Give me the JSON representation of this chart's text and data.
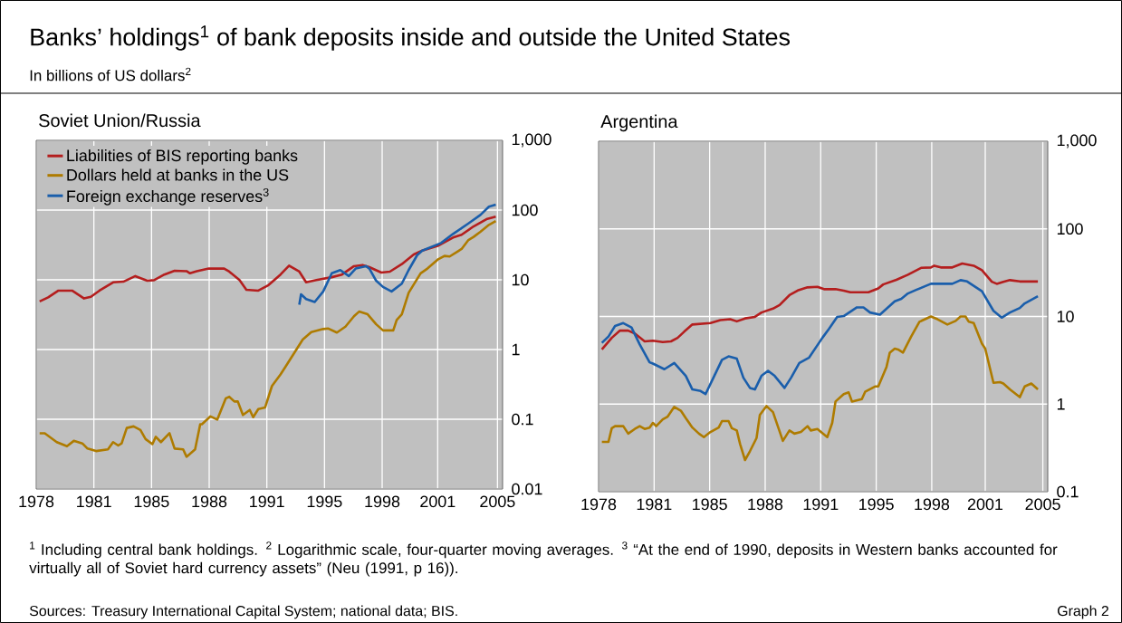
{
  "chart_data": [
    {
      "type": "line",
      "title": "Soviet Union/Russia",
      "annotations": [
        "Banks’ holdings$^{1}$ of bank deposits inside and outside the United States",
        "In billions of US dollars$^{2}$",
        "$^{1}$ Including central bank holdings.  $^{2}$ Logarithmic scale, four-quarter moving averages.  $^{3}$ “At the end of 1990, deposits in Western banks accounted for virtually all of Soviet hard currency assets” (Neu (1991, p 16)).",
        "Sources: Treasury International Capital System; national data; BIS.",
        "Graph 2"
      ],
      "log": "y",
      "grid": true,
      "legend": "top left",
      "xlim": [
        1978,
        2005.3
      ],
      "ylim": [
        0.01,
        1000
      ],
      "xticks": [
        1978,
        {
          "value": 1981.375,
          "label": "1981"
        },
        {
          "value": 1984.75,
          "label": "1985"
        },
        {
          "value": 1988.125,
          "label": "1988"
        },
        {
          "value": 1991.5,
          "label": "1991"
        },
        {
          "value": 1994.875,
          "label": "1995"
        },
        {
          "value": 1998.25,
          "label": "1998"
        },
        {
          "value": 2001.5,
          "label": "2001"
        },
        2005
      ],
      "yticks": [
        0.01,
        0.1,
        1,
        10,
        100,
        {
          "value": 1000,
          "label": "1,000"
        }
      ],
      "series": [
        {
          "name": "Liabilities of BIS reporting banks",
          "color": "#b41e1e",
          "x": [
            1978.2,
            1978.7,
            1979.3,
            1980.1,
            1980.8,
            1981.2,
            1981.7,
            1982.5,
            1983.1,
            1983.8,
            1984.5,
            1984.9,
            1985.5,
            1986.1,
            1986.8,
            1987.0,
            1987.4,
            1988.1,
            1989.0,
            1989.3,
            1989.9,
            1990.3,
            1991.0,
            1991.6,
            1992.3,
            1992.8,
            1993.4,
            1993.8,
            1994.4,
            1995.3,
            1995.9,
            1996.6,
            1997.1,
            1997.5,
            1998.2,
            1998.7,
            1999.4,
            2000.1,
            2000.6,
            2001.5,
            2002.4,
            2002.9,
            2003.6,
            2004.4,
            2004.9
          ],
          "values": [
            4.9,
            5.6,
            7.0,
            7.0,
            5.4,
            5.7,
            7.0,
            9.2,
            9.4,
            11.3,
            9.7,
            9.9,
            11.9,
            13.5,
            13.3,
            12.4,
            13.3,
            14.5,
            14.5,
            13.1,
            9.9,
            7.2,
            7.0,
            8.4,
            11.9,
            16.0,
            13.1,
            9.2,
            9.9,
            10.9,
            11.9,
            15.7,
            16.3,
            15.2,
            12.7,
            13.1,
            16.8,
            23.1,
            26.3,
            30.6,
            40.4,
            44.2,
            58.3,
            74.8,
            80.4
          ]
        },
        {
          "name": "Dollars held at banks in the US",
          "color": "#ae7b00",
          "x": [
            1978.2,
            1978.5,
            1979.2,
            1979.8,
            1980.2,
            1980.7,
            1981.0,
            1981.5,
            1982.2,
            1982.5,
            1982.8,
            1983.0,
            1983.3,
            1983.7,
            1984.1,
            1984.4,
            1984.8,
            1985.0,
            1985.3,
            1985.8,
            1986.1,
            1986.6,
            1986.8,
            1987.3,
            1987.6,
            1987.7,
            1988.2,
            1988.6,
            1989.1,
            1989.3,
            1989.6,
            1989.8,
            1990.1,
            1990.5,
            1990.7,
            1991.0,
            1991.4,
            1991.8,
            1992.3,
            1992.6,
            1993.6,
            1994.1,
            1994.8,
            1995.1,
            1995.6,
            1996.1,
            1996.6,
            1996.9,
            1997.4,
            1997.9,
            1998.3,
            1998.9,
            1999.1,
            1999.4,
            1999.8,
            2000.5,
            2000.9,
            2001.5,
            2001.9,
            2002.2,
            2002.7,
            2002.9,
            2003.3,
            2003.6,
            2004.0,
            2004.5,
            2004.9
          ],
          "values": [
            0.063,
            0.063,
            0.047,
            0.041,
            0.049,
            0.045,
            0.038,
            0.035,
            0.037,
            0.047,
            0.042,
            0.045,
            0.075,
            0.079,
            0.07,
            0.052,
            0.044,
            0.056,
            0.047,
            0.063,
            0.038,
            0.037,
            0.029,
            0.037,
            0.085,
            0.085,
            0.11,
            0.099,
            0.2,
            0.21,
            0.18,
            0.18,
            0.115,
            0.136,
            0.107,
            0.14,
            0.148,
            0.3,
            0.44,
            0.57,
            1.39,
            1.78,
            1.97,
            2.0,
            1.75,
            2.13,
            3.0,
            3.5,
            3.2,
            2.3,
            1.88,
            1.88,
            2.65,
            3.2,
            6.5,
            12.4,
            14.5,
            19.5,
            22,
            21.6,
            25.8,
            27.7,
            37.2,
            41.2,
            48.8,
            61.4,
            69.8
          ]
        },
        {
          "name": "Foreign exchange reserves$^{3}$",
          "color": "#1a5eab",
          "x": [
            1993.4,
            1993.5,
            1993.8,
            1994.3,
            1994.8,
            1995.3,
            1995.8,
            1996.3,
            1996.7,
            1997.3,
            1997.5,
            1997.9,
            1998.3,
            1998.8,
            1999.4,
            1999.8,
            2000.3,
            2000.6,
            2001.7,
            2002.4,
            2003.3,
            2004.0,
            2004.5,
            2004.9
          ],
          "values": [
            4.4,
            6.2,
            5.3,
            4.8,
            6.8,
            12.4,
            13.8,
            11.3,
            14.5,
            15.7,
            14.5,
            9.7,
            7.9,
            6.8,
            8.8,
            13.8,
            22.6,
            26.3,
            33.7,
            45.5,
            64.4,
            85.3,
            112,
            120
          ]
        }
      ]
    },
    {
      "type": "line",
      "title": "Argentina",
      "log": "y",
      "grid": true,
      "xlim": [
        1978,
        2005.3
      ],
      "ylim": [
        0.1,
        1000
      ],
      "xticks": [
        1978,
        {
          "value": 1981.375,
          "label": "1981"
        },
        {
          "value": 1984.75,
          "label": "1985"
        },
        {
          "value": 1988.125,
          "label": "1988"
        },
        {
          "value": 1991.5,
          "label": "1991"
        },
        {
          "value": 1994.875,
          "label": "1995"
        },
        {
          "value": 1998.25,
          "label": "1998"
        },
        {
          "value": 2001.5,
          "label": "2001"
        },
        2005
      ],
      "yticks": [
        0.1,
        1,
        10,
        100,
        {
          "value": 1000,
          "label": "1,000"
        }
      ],
      "series": [
        {
          "color": "#b41e1e",
          "x": [
            1978.2,
            1978.8,
            1979.3,
            1979.8,
            1980.2,
            1980.8,
            1981.3,
            1981.9,
            1982.4,
            1982.8,
            1983.2,
            1983.7,
            1984.8,
            1985.4,
            1986.0,
            1986.4,
            1986.9,
            1987.5,
            1987.9,
            1988.6,
            1989.0,
            1989.6,
            1990.1,
            1990.7,
            1991.3,
            1991.7,
            1992.4,
            1992.9,
            1993.3,
            1994.4,
            1995.0,
            1995.3,
            1996.1,
            1996.8,
            1997.6,
            1998.2,
            1998.4,
            1998.8,
            1999.5,
            2000.1,
            2000.8,
            2001.3,
            2001.9,
            2002.2,
            2002.6,
            2003.0,
            2003.6,
            2004.7
          ],
          "values": [
            4.2,
            5.7,
            6.9,
            6.9,
            6.4,
            5.2,
            5.3,
            5.1,
            5.2,
            5.7,
            6.7,
            8.1,
            8.4,
            9.1,
            9.3,
            8.8,
            9.5,
            9.9,
            11.1,
            12.3,
            13.5,
            17.5,
            19.8,
            21.5,
            21.8,
            20.5,
            20.5,
            19.7,
            18.9,
            18.9,
            20.9,
            23.2,
            26.2,
            30,
            35.9,
            36.3,
            38,
            36.3,
            36.3,
            40.2,
            38,
            33.7,
            24.9,
            23.6,
            24.9,
            26,
            25.1,
            25.1
          ]
        },
        {
          "color": "#ae7b00",
          "x": [
            1978.2,
            1978.6,
            1978.8,
            1979.0,
            1979.5,
            1979.8,
            1980.2,
            1980.5,
            1980.8,
            1981.1,
            1981.3,
            1981.5,
            1981.9,
            1982.2,
            1982.6,
            1983.0,
            1983.3,
            1983.7,
            1984.1,
            1984.4,
            1984.8,
            1985.3,
            1985.5,
            1985.9,
            1986.1,
            1986.4,
            1986.6,
            1986.9,
            1987.2,
            1987.6,
            1987.8,
            1988.2,
            1988.6,
            1989.2,
            1989.6,
            1989.9,
            1990.3,
            1990.7,
            1990.9,
            1991.3,
            1991.7,
            1991.9,
            1992.2,
            1992.4,
            1992.9,
            1993.2,
            1993.4,
            1994.0,
            1994.2,
            1994.8,
            1995.0,
            1995.5,
            1995.7,
            1996.0,
            1996.2,
            1996.5,
            1997.0,
            1997.5,
            1998.2,
            1998.6,
            1999.2,
            1999.7,
            2000.0,
            2000.3,
            2000.5,
            2000.8,
            2001.3,
            2001.5,
            2002.0,
            2002.4,
            2002.6,
            2003.0,
            2003.6,
            2003.9,
            2004.3,
            2004.7
          ],
          "values": [
            0.37,
            0.37,
            0.53,
            0.56,
            0.56,
            0.46,
            0.52,
            0.56,
            0.52,
            0.54,
            0.61,
            0.56,
            0.67,
            0.72,
            0.93,
            0.84,
            0.69,
            0.54,
            0.46,
            0.42,
            0.48,
            0.54,
            0.64,
            0.64,
            0.53,
            0.5,
            0.35,
            0.23,
            0.29,
            0.41,
            0.75,
            0.95,
            0.81,
            0.38,
            0.5,
            0.46,
            0.48,
            0.56,
            0.5,
            0.52,
            0.45,
            0.42,
            0.61,
            1.07,
            1.3,
            1.36,
            1.07,
            1.14,
            1.38,
            1.59,
            1.59,
            2.66,
            3.87,
            4.3,
            4.2,
            3.87,
            5.9,
            8.7,
            10.0,
            9.3,
            8.1,
            8.9,
            10.0,
            10.0,
            8.7,
            8.4,
            4.9,
            4.3,
            1.75,
            1.78,
            1.72,
            1.47,
            1.2,
            1.59,
            1.72,
            1.47
          ]
        },
        {
          "color": "#1a5eab",
          "x": [
            1978.2,
            1978.6,
            1979.0,
            1979.5,
            1980.0,
            1980.5,
            1981.1,
            1981.3,
            1982.0,
            1982.6,
            1983.3,
            1983.7,
            1984.2,
            1984.5,
            1984.9,
            1985.5,
            1985.9,
            1986.4,
            1986.8,
            1987.2,
            1987.5,
            1987.9,
            1988.3,
            1988.7,
            1989.3,
            1989.7,
            1990.2,
            1990.8,
            1991.6,
            1992.0,
            1992.5,
            1992.9,
            1993.7,
            1994.1,
            1994.5,
            1995.1,
            1996.0,
            1996.4,
            1996.8,
            1997.3,
            1998.2,
            1999.5,
            2000.0,
            2000.4,
            2001.3,
            2002.0,
            2002.5,
            2003.0,
            2003.6,
            2003.9,
            2004.7
          ],
          "values": [
            5.0,
            5.9,
            7.8,
            8.4,
            7.5,
            4.8,
            3.0,
            2.9,
            2.5,
            2.95,
            2.1,
            1.47,
            1.41,
            1.3,
            1.86,
            3.2,
            3.5,
            3.3,
            2.0,
            1.53,
            1.47,
            2.1,
            2.4,
            2.1,
            1.53,
            2.0,
            2.95,
            3.4,
            5.7,
            7.2,
            9.9,
            10.1,
            12.7,
            12.7,
            11.1,
            10.5,
            14.9,
            15.9,
            18.3,
            20.1,
            23.6,
            23.6,
            26,
            25.1,
            19.4,
            11.6,
            9.7,
            11.1,
            12.5,
            14.1,
            17.0
          ]
        }
      ]
    }
  ]
}
